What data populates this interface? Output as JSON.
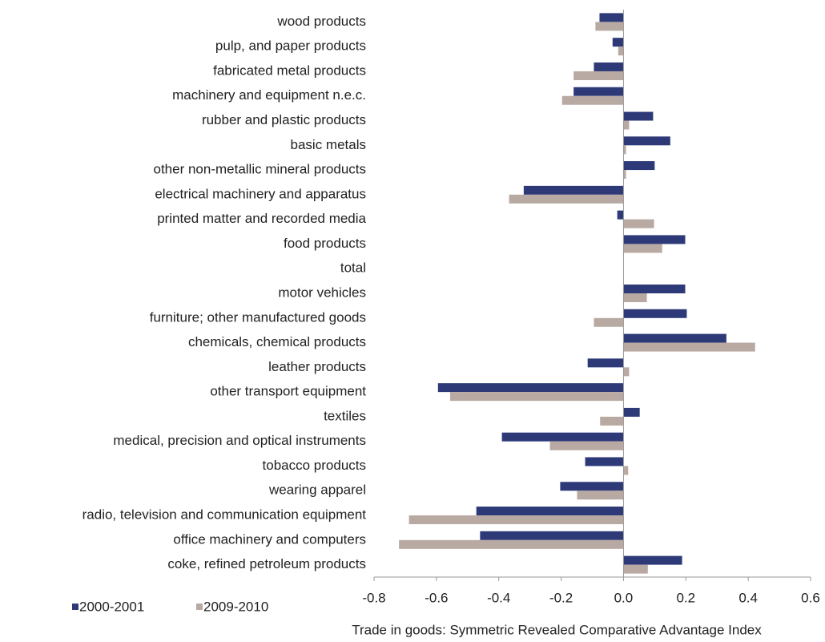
{
  "chart_data": {
    "type": "hbar",
    "x_label": "Trade in goods: Symmetric Revealed Comparative Advantage Index",
    "categories": [
      "wood products",
      "pulp, and paper products",
      "fabricated metal products",
      "machinery and equipment n.e.c.",
      "rubber and plastic products",
      "basic metals",
      "other non-metallic mineral products",
      "electrical machinery and apparatus",
      "printed matter and recorded media",
      "food products",
      "total",
      "motor vehicles",
      "furniture; other manufactured goods",
      "chemicals, chemical products",
      "leather products",
      "other transport equipment",
      "textiles",
      "medical, precision and optical instruments",
      "tobacco products",
      "wearing apparel",
      "radio, television and communication equipment",
      "office machinery and computers",
      "coke, refined petroleum products"
    ],
    "series": [
      {
        "name": "2000-2001",
        "color": "#2e3a78",
        "values": [
          -0.077,
          -0.035,
          -0.095,
          -0.16,
          0.095,
          0.15,
          0.1,
          -0.32,
          -0.02,
          0.198,
          0,
          0.198,
          0.203,
          0.33,
          -0.115,
          -0.595,
          0.052,
          -0.39,
          -0.123,
          -0.203,
          -0.472,
          -0.46,
          0.188
        ]
      },
      {
        "name": "2009-2010",
        "color": "#b8a9a3",
        "values": [
          -0.09,
          -0.017,
          -0.16,
          -0.197,
          0.018,
          0.008,
          0.008,
          -0.367,
          0.098,
          0.124,
          0,
          0.075,
          -0.095,
          0.422,
          0.018,
          -0.556,
          -0.075,
          -0.236,
          0.015,
          -0.149,
          -0.688,
          -0.72,
          0.078
        ]
      }
    ],
    "xlim": [
      -0.8,
      0.6
    ],
    "xticks": [
      -0.8,
      -0.6,
      -0.4,
      -0.2,
      {
        "value": 0,
        "label": "0.0"
      },
      0.2,
      0.4,
      0.6
    ],
    "legend": "bottom-left"
  }
}
